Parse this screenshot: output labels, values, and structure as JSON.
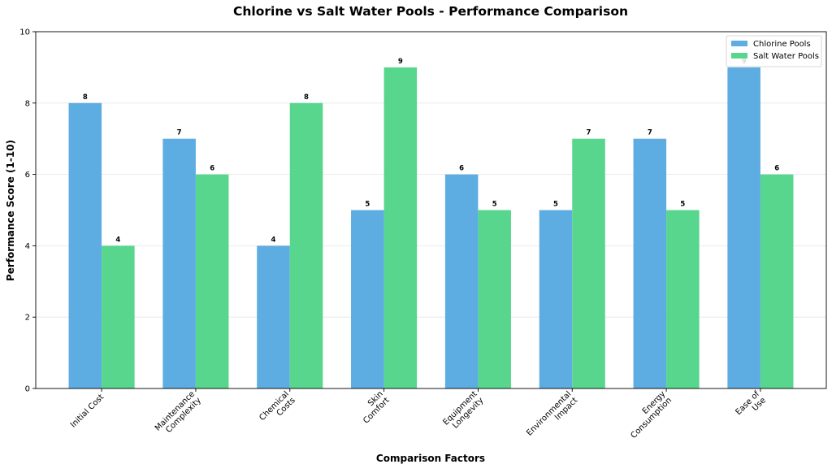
{
  "chart_data": {
    "type": "bar",
    "title": "Chlorine vs Salt Water Pools - Performance Comparison",
    "xlabel": "Comparison Factors",
    "ylabel": "Performance Score (1-10)",
    "ylim": [
      0,
      10
    ],
    "yticks": [
      0,
      2,
      4,
      6,
      8,
      10
    ],
    "grid": "y-axis only",
    "legend_position": "top-right",
    "categories": [
      [
        "Initial Cost"
      ],
      [
        "Maintenance",
        "Complexity"
      ],
      [
        "Chemical",
        "Costs"
      ],
      [
        "Skin",
        "Comfort"
      ],
      [
        "Equipment",
        "Longevity"
      ],
      [
        "Environmental",
        "Impact"
      ],
      [
        "Energy",
        "Consumption"
      ],
      [
        "Ease of",
        "Use"
      ]
    ],
    "series": [
      {
        "name": "Chlorine Pools",
        "color": "#5DADE2",
        "values": [
          8,
          7,
          4,
          5,
          6,
          5,
          7,
          9
        ]
      },
      {
        "name": "Salt Water Pools",
        "color": "#58D68D",
        "values": [
          4,
          6,
          8,
          9,
          5,
          7,
          5,
          6
        ]
      }
    ]
  }
}
